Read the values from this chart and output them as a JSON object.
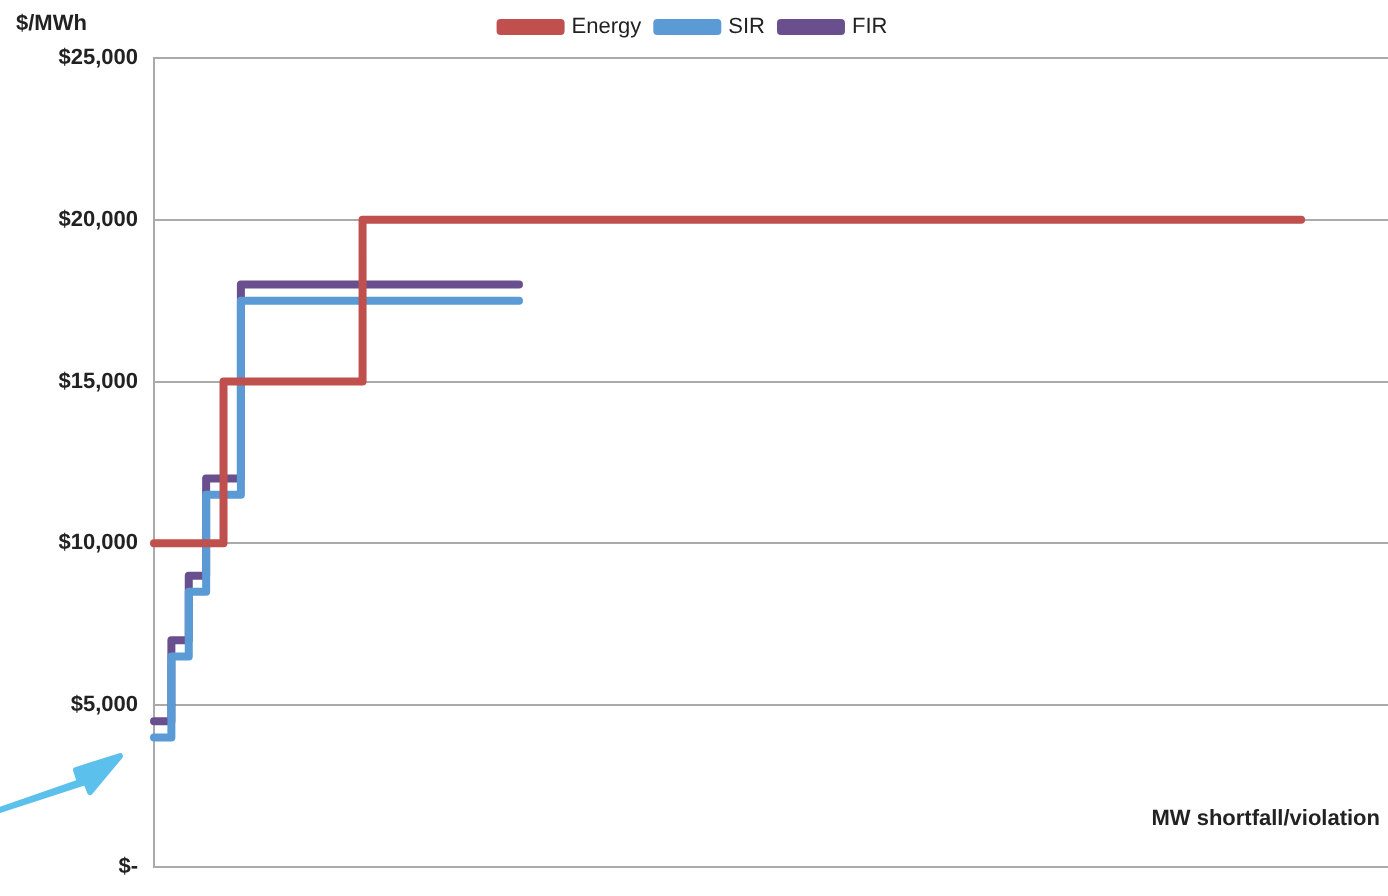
{
  "chart_data": {
    "type": "step",
    "ylabel": "$/MWh",
    "xlabel": "MW shortfall/violation",
    "categories": [
      null,
      null,
      null,
      null,
      null,
      null,
      null,
      null,
      null,
      null,
      null,
      null,
      null,
      null,
      null,
      null,
      null,
      null,
      null,
      null,
      null,
      null,
      null,
      null,
      null,
      null,
      null,
      null,
      null,
      null,
      null,
      null,
      null,
      null,
      null,
      null,
      null,
      null,
      null,
      null,
      null,
      null,
      null,
      null,
      null,
      null,
      null,
      null,
      null,
      null,
      null,
      null,
      null,
      null,
      null,
      null,
      null,
      null,
      null,
      null,
      null,
      null,
      null,
      null,
      null,
      null,
      null,
      null,
      null,
      null,
      null,
      null
    ],
    "series": [
      {
        "name": "Energy",
        "color": "#c0504d",
        "values": [
          10000,
          10000,
          10000,
          10000,
          15000,
          15000,
          15000,
          15000,
          15000,
          15000,
          15000,
          15000,
          20000,
          20000,
          20000,
          20000,
          20000,
          20000,
          20000,
          20000,
          20000,
          20000,
          20000,
          20000,
          20000,
          20000,
          20000,
          20000,
          20000,
          20000,
          20000,
          20000,
          20000,
          20000,
          20000,
          20000,
          20000,
          20000,
          20000,
          20000,
          20000,
          20000,
          20000,
          20000,
          20000,
          20000,
          20000,
          20000,
          20000,
          20000,
          20000,
          20000,
          20000,
          20000,
          20000,
          20000,
          20000,
          20000,
          20000,
          20000,
          20000,
          20000,
          20000,
          20000,
          20000,
          20000,
          20000,
          null,
          null,
          null,
          null,
          null
        ]
      },
      {
        "name": "SIR",
        "color": "#5b9bd5",
        "values": [
          4000,
          6500,
          8500,
          11500,
          11500,
          17500,
          17500,
          17500,
          17500,
          17500,
          17500,
          17500,
          17500,
          17500,
          17500,
          17500,
          17500,
          17500,
          17500,
          17500,
          17500,
          17500,
          null,
          null,
          null,
          null,
          null,
          null,
          null,
          null,
          null,
          null,
          null,
          null,
          null,
          null,
          null,
          null,
          null,
          null,
          null,
          null,
          null,
          null,
          null,
          null,
          null,
          null,
          null,
          null,
          null,
          null,
          null,
          null,
          null,
          null,
          null,
          null,
          null,
          null,
          null,
          null,
          null,
          null,
          null,
          null,
          null,
          null,
          null,
          null,
          null,
          null
        ]
      },
      {
        "name": "FIR",
        "color": "#6a4f8e",
        "values": [
          4500,
          7000,
          9000,
          12000,
          12000,
          18000,
          18000,
          18000,
          18000,
          18000,
          18000,
          18000,
          18000,
          18000,
          18000,
          18000,
          18000,
          18000,
          18000,
          18000,
          18000,
          18000,
          null,
          null,
          null,
          null,
          null,
          null,
          null,
          null,
          null,
          null,
          null,
          null,
          null,
          null,
          null,
          null,
          null,
          null,
          null,
          null,
          null,
          null,
          null,
          null,
          null,
          null,
          null,
          null,
          null,
          null,
          null,
          null,
          null,
          null,
          null,
          null,
          null,
          null,
          null,
          null,
          null,
          null,
          null,
          null,
          null,
          null,
          null,
          null,
          null,
          null
        ]
      }
    ],
    "ylim": [
      0,
      25000
    ],
    "yticks": [
      {
        "value": 0,
        "label": "$-"
      },
      {
        "value": 5000,
        "label": "$5,000"
      },
      {
        "value": 10000,
        "label": "$10,000"
      },
      {
        "value": 15000,
        "label": "$15,000"
      },
      {
        "value": 20000,
        "label": "$20,000"
      },
      {
        "value": 25000,
        "label": "$25,000"
      }
    ],
    "grid": "y",
    "legend": "top",
    "marker": "none",
    "line_style": "solid",
    "tick_labels": "y"
  }
}
